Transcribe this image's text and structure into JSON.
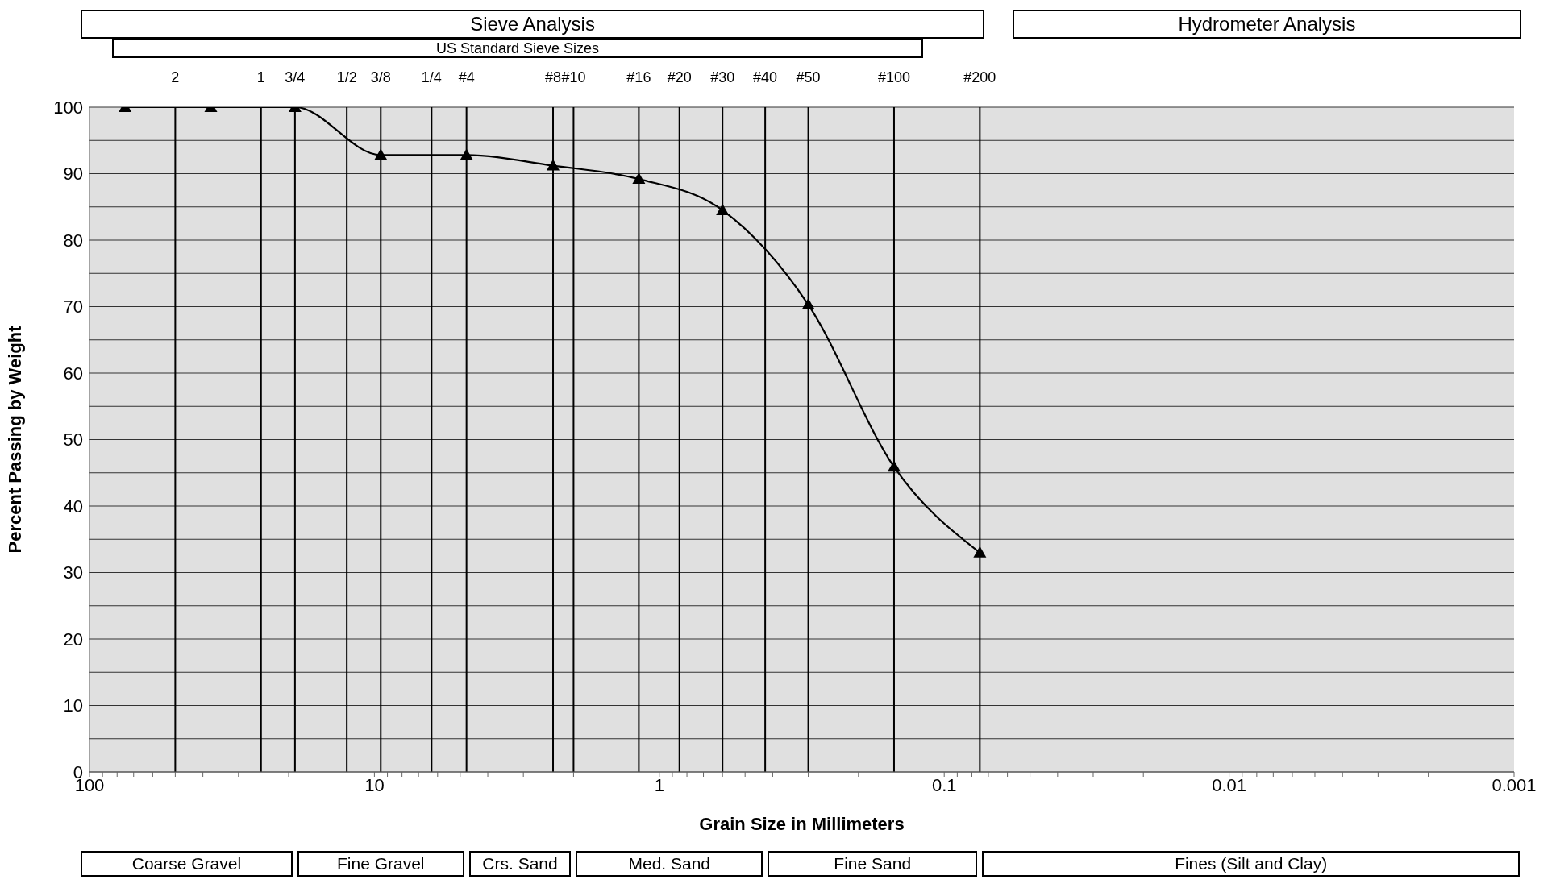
{
  "chart_data": {
    "type": "line",
    "xlabel": "Grain Size in Millimeters",
    "ylabel": "Percent Passing by Weight",
    "annotations": [
      "Sieve Analysis",
      "Hydrometer Analysis",
      "US Standard Sieve Sizes",
      "2",
      "1",
      "3/4",
      "1/2",
      "3/8",
      "1/4",
      "#4",
      "#8",
      "#10",
      "#16",
      "#20",
      "#30",
      "#40",
      "#50",
      "#100",
      "#200",
      "Coarse Gravel",
      "Fine Gravel",
      "Crs. Sand",
      "Med. Sand",
      "Fine Sand",
      "Fines (Silt and Clay)"
    ],
    "x": [
      75,
      37.5,
      19,
      9.5,
      4.75,
      2.36,
      1.18,
      0.6,
      0.3,
      0.15,
      0.075
    ],
    "series": [
      {
        "color": "#000000",
        "values": [
          100,
          100,
          100,
          92.8,
          92.8,
          91.2,
          89.2,
          84.5,
          70.3,
          45.9,
          33.0
        ]
      }
    ],
    "log": "x",
    "xlim": [
      100,
      0.001
    ],
    "ylim": [
      0,
      100
    ],
    "xticks": [
      100,
      {
        "value": 90,
        "label": null
      },
      {
        "value": 80,
        "label": null
      },
      {
        "value": 70,
        "label": null
      },
      {
        "value": 60,
        "label": null
      },
      {
        "value": 50,
        "label": null
      },
      {
        "value": 40,
        "label": null
      },
      {
        "value": 30,
        "label": null
      },
      {
        "value": 20,
        "label": null
      },
      10,
      {
        "value": 9,
        "label": null
      },
      {
        "value": 8,
        "label": null
      },
      {
        "value": 7,
        "label": null
      },
      {
        "value": 6,
        "label": null
      },
      {
        "value": 5,
        "label": null
      },
      {
        "value": 4,
        "label": null
      },
      {
        "value": 3,
        "label": null
      },
      {
        "value": 2,
        "label": null
      },
      1,
      {
        "value": 0.9,
        "label": null
      },
      {
        "value": 0.8,
        "label": null
      },
      {
        "value": 0.7,
        "label": null
      },
      {
        "value": 0.6,
        "label": null
      },
      {
        "value": 0.5,
        "label": null
      },
      {
        "value": 0.4,
        "label": null
      },
      {
        "value": 0.3,
        "label": null
      },
      {
        "value": 0.2,
        "label": null
      },
      0.1,
      {
        "value": 0.09,
        "label": null
      },
      {
        "value": 0.08,
        "label": null
      },
      {
        "value": 0.07,
        "label": null
      },
      {
        "value": 0.06,
        "label": null
      },
      {
        "value": 0.05,
        "label": null
      },
      {
        "value": 0.04,
        "label": null
      },
      {
        "value": 0.03,
        "label": null
      },
      {
        "value": 0.02,
        "label": null
      },
      0.01,
      {
        "value": 0.009,
        "label": null
      },
      {
        "value": 0.008,
        "label": null
      },
      {
        "value": 0.007,
        "label": null
      },
      {
        "value": 0.006,
        "label": null
      },
      {
        "value": 0.005,
        "label": null
      },
      {
        "value": 0.004,
        "label": null
      },
      {
        "value": 0.003,
        "label": null
      },
      {
        "value": 0.002,
        "label": null
      },
      0.001
    ],
    "yticks": [
      0,
      {
        "value": 5,
        "label": null
      },
      10,
      {
        "value": 15,
        "label": null
      },
      20,
      {
        "value": 25,
        "label": null
      },
      30,
      {
        "value": 35,
        "label": null
      },
      40,
      {
        "value": 45,
        "label": null
      },
      50,
      {
        "value": 55,
        "label": null
      },
      60,
      {
        "value": 65,
        "label": null
      },
      70,
      {
        "value": 75,
        "label": null
      },
      80,
      {
        "value": 85,
        "label": null
      },
      90,
      {
        "value": 95,
        "label": null
      },
      100
    ],
    "grid": "y",
    "marker": "triangle",
    "line_style": "solid",
    "ref_lines": [
      {
        "axis": "x",
        "value": 50,
        "color": "#000000"
      },
      {
        "axis": "x",
        "value": 25,
        "color": "#000000"
      },
      {
        "axis": "x",
        "value": 19,
        "color": "#000000"
      },
      {
        "axis": "x",
        "value": 12.5,
        "color": "#000000"
      },
      {
        "axis": "x",
        "value": 9.5,
        "color": "#000000"
      },
      {
        "axis": "x",
        "value": 6.3,
        "color": "#000000"
      },
      {
        "axis": "x",
        "value": 4.75,
        "color": "#000000"
      },
      {
        "axis": "x",
        "value": 2.36,
        "color": "#000000"
      },
      {
        "axis": "x",
        "value": 2.0,
        "color": "#000000"
      },
      {
        "axis": "x",
        "value": 1.18,
        "color": "#000000"
      },
      {
        "axis": "x",
        "value": 0.85,
        "color": "#000000"
      },
      {
        "axis": "x",
        "value": 0.6,
        "color": "#000000"
      },
      {
        "axis": "x",
        "value": 0.425,
        "color": "#000000"
      },
      {
        "axis": "x",
        "value": 0.3,
        "color": "#000000"
      },
      {
        "axis": "x",
        "value": 0.15,
        "color": "#000000"
      },
      {
        "axis": "x",
        "value": 0.075,
        "color": "#000000"
      }
    ]
  }
}
